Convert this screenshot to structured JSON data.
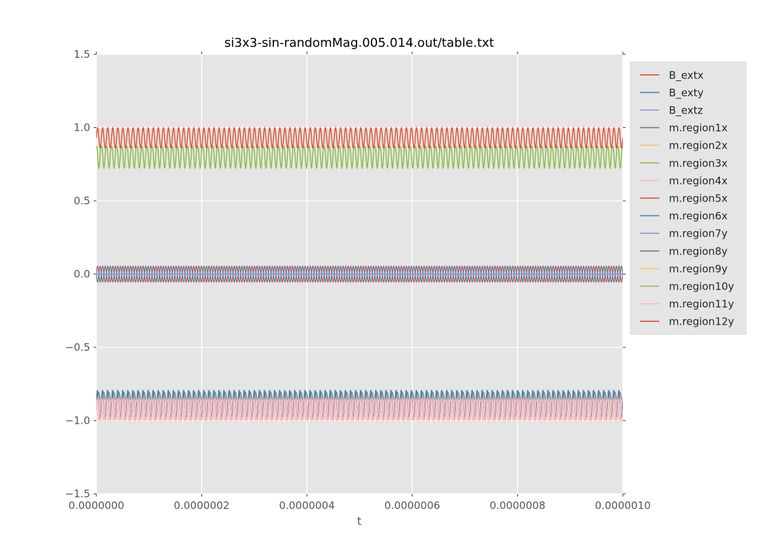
{
  "chart_data": {
    "type": "line",
    "title": "si3x3-sin-randomMag.005.014.out/table.txt",
    "xlabel": "t",
    "xlim": [
      0,
      1e-06
    ],
    "ylim": [
      -1.5,
      1.5
    ],
    "grid": true,
    "legend_position": "outside-right",
    "style": {
      "figure_bg": "#ffffff",
      "plot_bg": "#e5e5e5",
      "grid_color": "#ffffff",
      "tick_color": "#555555",
      "title_color": "#000000",
      "legend_bg": "#e5e5e5",
      "legend_border": "#d6d6d6",
      "legend_text": "#262626"
    },
    "x_ticks": [
      {
        "value": 0.0,
        "label": "0.0000000"
      },
      {
        "value": 2e-07,
        "label": "0.0000002"
      },
      {
        "value": 4e-07,
        "label": "0.0000004"
      },
      {
        "value": 6e-07,
        "label": "0.0000006"
      },
      {
        "value": 8e-07,
        "label": "0.0000008"
      },
      {
        "value": 1e-06,
        "label": "0.0000010"
      }
    ],
    "y_ticks": [
      {
        "value": 1.5,
        "label": "1.5"
      },
      {
        "value": 1.0,
        "label": "1.0"
      },
      {
        "value": 0.5,
        "label": "0.5"
      },
      {
        "value": 0.0,
        "label": "0.0"
      },
      {
        "value": -0.5,
        "label": "−0.5"
      },
      {
        "value": -1.0,
        "label": "−1.0"
      },
      {
        "value": -1.5,
        "label": "−1.5"
      }
    ],
    "legend": {
      "entries": [
        {
          "label": "B_extx",
          "color": "#E24A33"
        },
        {
          "label": "B_exty",
          "color": "#348ABD"
        },
        {
          "label": "B_extz",
          "color": "#988ED5"
        },
        {
          "label": "m.region1x",
          "color": "#777777"
        },
        {
          "label": "m.region2x",
          "color": "#FBC15E"
        },
        {
          "label": "m.region3x",
          "color": "#8EBA42"
        },
        {
          "label": "m.region4x",
          "color": "#FFB5B8"
        },
        {
          "label": "m.region5x",
          "color": "#E24A33"
        },
        {
          "label": "m.region6x",
          "color": "#348ABD"
        },
        {
          "label": "m.region7y",
          "color": "#988ED5"
        },
        {
          "label": "m.region8y",
          "color": "#777777"
        },
        {
          "label": "m.region9y",
          "color": "#FBC15E"
        },
        {
          "label": "m.region10y",
          "color": "#8EBA42"
        },
        {
          "label": "m.region11y",
          "color": "#FFB5B8"
        },
        {
          "label": "m.region12y",
          "color": "#E24A33"
        }
      ]
    },
    "oscillation_cycles_across_span": 104,
    "bands": [
      {
        "name": "upper",
        "y_range": [
          0.72,
          1.0
        ],
        "visible_colors": [
          "red",
          "green"
        ]
      },
      {
        "name": "middle",
        "y_range": [
          -0.06,
          0.06
        ],
        "visible_colors": [
          "red",
          "blue",
          "purple-flat-0"
        ]
      },
      {
        "name": "lower",
        "y_range": [
          -1.0,
          -0.79
        ],
        "visible_colors": [
          "pink",
          "blue",
          "gray"
        ]
      }
    ],
    "series": [
      {
        "name": "m.region1x",
        "color": "#777777",
        "waveform": "sin",
        "offset": 0.93,
        "amplitude": 0.07,
        "cycles": 104,
        "phase": 0,
        "exponent": 1,
        "width": 1.2
      },
      {
        "name": "m.region2x",
        "color": "#FBC15E",
        "waveform": "sin",
        "offset": 0.93,
        "amplitude": 0.07,
        "cycles": 104,
        "phase": 0,
        "exponent": 1,
        "width": 1.2
      },
      {
        "name": "m.region9y",
        "color": "#FBC15E",
        "waveform": "sin",
        "offset": 0.93,
        "amplitude": 0.07,
        "cycles": 104,
        "phase": 0,
        "exponent": 1,
        "width": 1.2
      },
      {
        "name": "m.region10y",
        "color": "#8EBA42",
        "waveform": "spikedown",
        "offset": 0.872,
        "amplitude": 0.15,
        "cycles": 104,
        "phase": 0,
        "exponent": 3,
        "width": 1.2
      },
      {
        "name": "m.region3x",
        "color": "#8EBA42",
        "waveform": "spikedown",
        "offset": 0.872,
        "amplitude": 0.15,
        "cycles": 104,
        "phase": 0,
        "exponent": 3,
        "width": 1.3
      },
      {
        "name": "m.region5x",
        "color": "#E24A33",
        "waveform": "sin",
        "offset": 0.93,
        "amplitude": 0.07,
        "cycles": 104,
        "phase": 0,
        "exponent": 1,
        "width": 1.3
      },
      {
        "name": "B_extx",
        "color": "#E24A33",
        "waveform": "sin",
        "offset": 0.0,
        "amplitude": 0.055,
        "cycles": 104,
        "phase": 0,
        "exponent": 1,
        "width": 1.3
      },
      {
        "name": "B_exty",
        "color": "#348ABD",
        "waveform": "sin",
        "offset": 0.0,
        "amplitude": 0.055,
        "cycles": 104,
        "phase": 3.14159,
        "exponent": 1,
        "width": 1.3
      },
      {
        "name": "m.region7y",
        "color": "#988ED5",
        "waveform": "flat",
        "offset": 0.0,
        "amplitude": 0,
        "cycles": 104,
        "phase": 0,
        "exponent": 1,
        "width": 1.6
      },
      {
        "name": "B_extz",
        "color": "#988ED5",
        "waveform": "flat",
        "offset": 0.0,
        "amplitude": 0,
        "cycles": 104,
        "phase": 0,
        "exponent": 1,
        "width": 1.8
      },
      {
        "name": "m.region12y",
        "color": "#E24A33",
        "waveform": "sin",
        "offset": -0.925,
        "amplitude": 0.075,
        "cycles": 104,
        "phase": 0,
        "exponent": 1,
        "width": 1.2
      },
      {
        "name": "m.region6x",
        "color": "#348ABD",
        "waveform": "spikeup",
        "offset": -0.975,
        "amplitude": 0.185,
        "cycles": 104,
        "phase": 0.9,
        "exponent": 2.5,
        "width": 1.3
      },
      {
        "name": "m.region8y",
        "color": "#777777",
        "waveform": "spikeup",
        "offset": -0.88,
        "amplitude": 0.075,
        "cycles": 104,
        "phase": 0.3,
        "exponent": 1.5,
        "width": 1.3
      },
      {
        "name": "m.region4x",
        "color": "#FFB5B8",
        "waveform": "sin",
        "offset": -0.925,
        "amplitude": 0.075,
        "cycles": 104,
        "phase": 0,
        "exponent": 1,
        "width": 1.3
      },
      {
        "name": "m.region11y",
        "color": "#FFB5B8",
        "waveform": "sin",
        "offset": -0.925,
        "amplitude": 0.075,
        "cycles": 104,
        "phase": 2.1,
        "exponent": 1,
        "width": 1.3
      }
    ]
  }
}
